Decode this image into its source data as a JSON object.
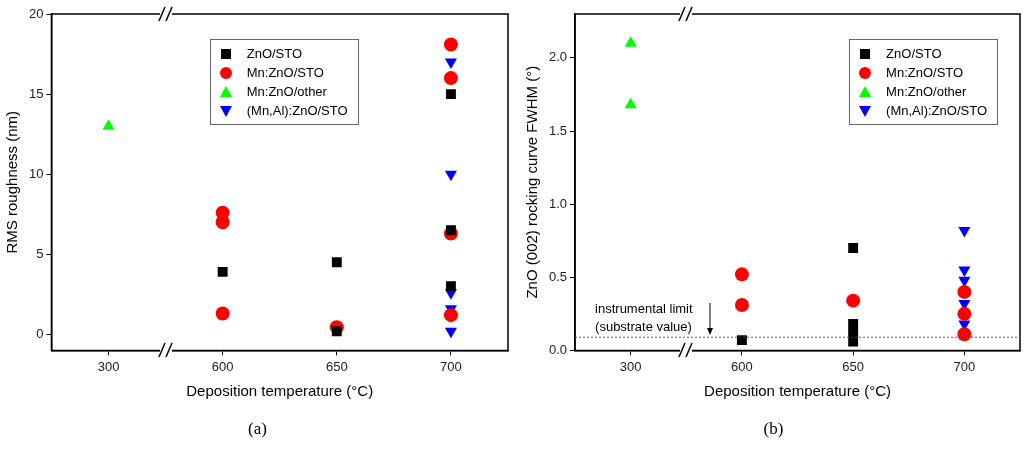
{
  "chart_data": [
    {
      "type": "scatter",
      "xlabel": "Deposition temperature (°C)",
      "ylabel": "RMS roughness (nm)",
      "categories": [
        "300",
        "600",
        "650",
        "700"
      ],
      "ylim": [
        -1,
        20
      ],
      "yticks": [
        0,
        5,
        10,
        15,
        20
      ],
      "grid": false,
      "legend": "top",
      "annotations": [
        "(a)"
      ],
      "series": [
        {
          "name": "ZnO/STO",
          "color": "#000000",
          "marker": "square",
          "x": [
            "600",
            "650",
            "650",
            "700",
            "700",
            "700"
          ],
          "values": [
            3.9,
            4.5,
            0.2,
            15,
            6.5,
            3.0
          ]
        },
        {
          "name": "Mn:ZnO/STO",
          "color": "#ff0000",
          "marker": "circle",
          "x": [
            "600",
            "600",
            "600",
            "650",
            "700",
            "700",
            "700",
            "700",
            "700"
          ],
          "values": [
            7.6,
            7.0,
            1.3,
            0.45,
            18.1,
            16.0,
            6.3,
            1.2,
            null
          ]
        },
        {
          "name": "Mn:ZnO/other",
          "color": "#00ff00",
          "marker": "triangle",
          "x": [
            "300"
          ],
          "values": [
            13.0
          ]
        },
        {
          "name": "(Mn,Al):ZnO/STO",
          "color": "#0000ff",
          "marker": "triangle-down",
          "x": [
            "700",
            "700",
            "700",
            "700",
            "700",
            "700"
          ],
          "values": [
            17.0,
            10.0,
            2.6,
            1.6,
            null,
            0.2
          ]
        }
      ]
    },
    {
      "type": "scatter",
      "xlabel": "Deposition temperature (°C)",
      "ylabel": "ZnO (002) rocking curve FWHM (°)",
      "categories": [
        "300",
        "600",
        "650",
        "700"
      ],
      "ylim": [
        0,
        2.3
      ],
      "yticks": [
        {
          "value": 0,
          "label": "0.0"
        },
        0.5,
        {
          "value": 1,
          "label": "1.0"
        },
        1.5,
        {
          "value": 2,
          "label": "2.0"
        }
      ],
      "grid": false,
      "legend": "top right",
      "annotations": [
        "(b)"
      ],
      "ref_lines": [
        {
          "axis": "y",
          "value": 0.09,
          "label": "instrumental limit (substrate value)",
          "line_style": "dotted",
          "color": "#555555"
        }
      ],
      "series": [
        {
          "name": "ZnO/STO",
          "color": "#000000",
          "marker": "square",
          "x": [
            "600",
            "650",
            "650",
            "650",
            "650"
          ],
          "values": [
            0.07,
            0.7,
            0.18,
            0.12,
            0.06
          ]
        },
        {
          "name": "Mn:ZnO/STO",
          "color": "#ff0000",
          "marker": "circle",
          "x": [
            "600",
            "600",
            "600",
            "650",
            "700",
            "700",
            "700"
          ],
          "values": [
            0.52,
            0.31,
            null,
            0.34,
            0.4,
            0.25,
            0.11
          ]
        },
        {
          "name": "Mn:ZnO/other",
          "color": "#00ff00",
          "marker": "triangle",
          "x": [
            "300",
            "300"
          ],
          "values": [
            2.1,
            1.68
          ]
        },
        {
          "name": "(Mn,Al):ZnO/STO",
          "color": "#0000ff",
          "marker": "triangle-down",
          "x": [
            "700",
            "700",
            "700",
            "700",
            "700"
          ],
          "values": [
            0.82,
            0.55,
            0.48,
            0.32,
            0.18
          ]
        }
      ]
    }
  ]
}
